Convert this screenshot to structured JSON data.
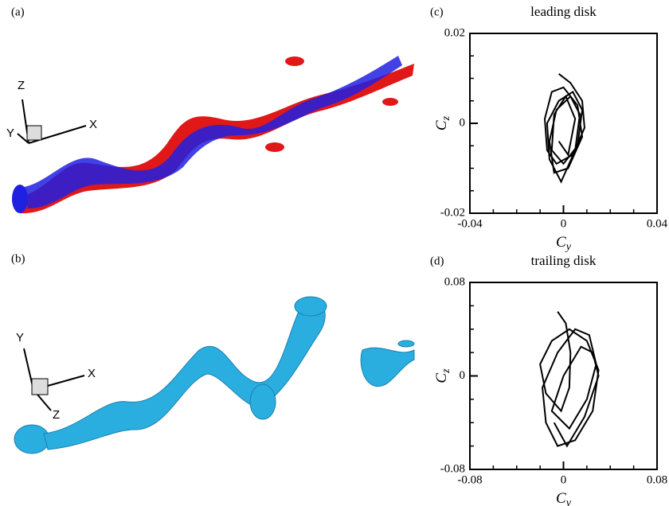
{
  "panels": {
    "a": {
      "label": "(a)",
      "axes": [
        "Z",
        "Y",
        "X"
      ]
    },
    "b": {
      "label": "(b)",
      "axes": [
        "Y",
        "X",
        "Z"
      ]
    }
  },
  "chart_data": [
    {
      "type": "line",
      "panel_label": "(c)",
      "title": "leading disk",
      "xlabel": "C",
      "xlabel_subscript": "y",
      "ylabel": "C",
      "ylabel_subscript": "z",
      "xlim": [
        -0.04,
        0.04
      ],
      "xticks": [
        -0.04,
        0,
        0.04
      ],
      "ylim": [
        -0.02,
        0.02
      ],
      "yticks": [
        -0.02,
        0,
        0.02
      ],
      "color": "#000000",
      "x": [
        -0.002,
        0.003,
        0.008,
        0.009,
        0.004,
        -0.003,
        -0.007,
        -0.008,
        -0.005,
        0,
        0.006,
        0.008,
        0.002,
        -0.004,
        -0.006,
        -0.003,
        0.003,
        0.007,
        0.005,
        -0.001,
        -0.006,
        -0.007,
        -0.002,
        0.004,
        0.008,
        0.006,
        0,
        -0.005,
        -0.004,
        0.001,
        0.005,
        0.002,
        -0.002
      ],
      "values": [
        0.011,
        0.009,
        0.005,
        -0.001,
        -0.007,
        -0.009,
        -0.006,
        0.001,
        0.007,
        0.008,
        0.004,
        -0.003,
        -0.01,
        -0.011,
        -0.004,
        0.003,
        0.006,
        0.002,
        -0.006,
        -0.013,
        -0.008,
        0,
        0.005,
        0.007,
        0.003,
        -0.005,
        -0.009,
        -0.006,
        0.002,
        0.006,
        0.001,
        -0.007,
        -0.004
      ]
    },
    {
      "type": "line",
      "panel_label": "(d)",
      "title": "trailing disk",
      "xlabel": "C",
      "xlabel_subscript": "y",
      "ylabel": "C",
      "ylabel_subscript": "z",
      "xlim": [
        -0.08,
        0.08
      ],
      "xticks": [
        -0.08,
        0,
        0.08
      ],
      "ylim": [
        -0.08,
        0.08
      ],
      "yticks": [
        -0.08,
        0,
        0.08
      ],
      "color": "#000000",
      "x": [
        -0.005,
        0.002,
        0.006,
        0.005,
        -0.002,
        -0.015,
        -0.02,
        -0.01,
        0.005,
        0.02,
        0.03,
        0.025,
        0.01,
        -0.005,
        -0.015,
        -0.018,
        -0.005,
        0.01,
        0.022,
        0.028,
        0.02,
        0.005,
        -0.01,
        0,
        0.015,
        0.025,
        0.03,
        0.018,
        0.003,
        -0.008
      ],
      "values": [
        0.055,
        0.045,
        0.02,
        -0.01,
        -0.03,
        -0.015,
        0.01,
        0.03,
        0.04,
        0.03,
        0.005,
        -0.03,
        -0.055,
        -0.06,
        -0.04,
        -0.01,
        0.02,
        0.04,
        0.035,
        0.01,
        -0.02,
        -0.045,
        -0.03,
        0,
        0.025,
        0.02,
        0,
        -0.035,
        -0.06,
        -0.04
      ]
    }
  ]
}
